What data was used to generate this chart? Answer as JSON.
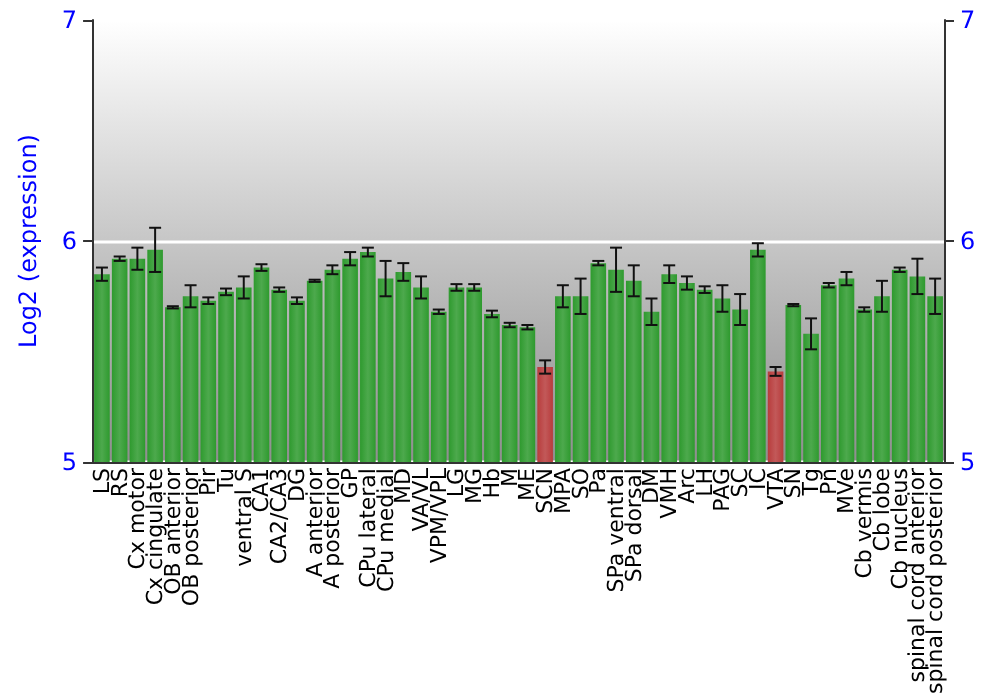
{
  "chart_data": {
    "type": "bar",
    "ylabel": "Log2 (expression)",
    "categories": [
      "LS",
      "RS",
      "Cx motor",
      "Cx cingulate",
      "OB anterior",
      "OB posterior",
      "Pir",
      "Tu",
      "ventral S",
      "CA1",
      "CA2/CA3",
      "DG",
      "A anterior",
      "A posterior",
      "GP",
      "CPu lateral",
      "CPu medial",
      "MD",
      "VA/VL",
      "VPM/VPL",
      "LG",
      "MG",
      "Hb",
      "M",
      "ME",
      "SCN",
      "MPA",
      "SO",
      "Pa",
      "SPa ventral",
      "SPa dorsal",
      "DM",
      "VMH",
      "Arc",
      "LH",
      "PAG",
      "SC",
      "IC",
      "VTA",
      "SN",
      "Tg",
      "Pn",
      "MVe",
      "Cb vermis",
      "Cb lobe",
      "Cb nucleus",
      "spinal cord anterior",
      "spinal cord posterior"
    ],
    "values": [
      5.85,
      5.92,
      5.92,
      5.96,
      5.7,
      5.75,
      5.73,
      5.77,
      5.79,
      5.88,
      5.78,
      5.73,
      5.82,
      5.87,
      5.92,
      5.95,
      5.83,
      5.86,
      5.79,
      5.68,
      5.79,
      5.79,
      5.67,
      5.62,
      5.61,
      5.43,
      5.75,
      5.75,
      5.9,
      5.87,
      5.82,
      5.68,
      5.85,
      5.81,
      5.78,
      5.74,
      5.69,
      5.96,
      5.41,
      5.71,
      5.58,
      5.8,
      5.83,
      5.69,
      5.75,
      5.87,
      5.84,
      5.75
    ],
    "errors": [
      0.03,
      0.01,
      0.05,
      0.1,
      0.005,
      0.05,
      0.015,
      0.015,
      0.05,
      0.015,
      0.01,
      0.015,
      0.005,
      0.02,
      0.03,
      0.02,
      0.08,
      0.04,
      0.05,
      0.01,
      0.015,
      0.015,
      0.015,
      0.01,
      0.01,
      0.03,
      0.05,
      0.08,
      0.01,
      0.1,
      0.07,
      0.06,
      0.04,
      0.03,
      0.015,
      0.06,
      0.07,
      0.03,
      0.02,
      0.005,
      0.07,
      0.01,
      0.03,
      0.01,
      0.07,
      0.01,
      0.08,
      0.08
    ],
    "colors": [
      "#2e9a2e",
      "#2e9a2e",
      "#2e9a2e",
      "#2e9a2e",
      "#2e9a2e",
      "#2e9a2e",
      "#2e9a2e",
      "#2e9a2e",
      "#2e9a2e",
      "#2e9a2e",
      "#2e9a2e",
      "#2e9a2e",
      "#2e9a2e",
      "#2e9a2e",
      "#2e9a2e",
      "#2e9a2e",
      "#2e9a2e",
      "#2e9a2e",
      "#2e9a2e",
      "#2e9a2e",
      "#2e9a2e",
      "#2e9a2e",
      "#2e9a2e",
      "#2e9a2e",
      "#2e9a2e",
      "#b83c3c",
      "#2e9a2e",
      "#2e9a2e",
      "#2e9a2e",
      "#2e9a2e",
      "#2e9a2e",
      "#2e9a2e",
      "#2e9a2e",
      "#2e9a2e",
      "#2e9a2e",
      "#2e9a2e",
      "#2e9a2e",
      "#2e9a2e",
      "#b83c3c",
      "#2e9a2e",
      "#2e9a2e",
      "#2e9a2e",
      "#2e9a2e",
      "#2e9a2e",
      "#2e9a2e",
      "#2e9a2e",
      "#2e9a2e",
      "#2e9a2e"
    ],
    "ylim": [
      5,
      7
    ],
    "yticks": [
      5,
      6,
      7
    ],
    "y2lim": [
      5,
      7
    ],
    "y2ticks": [
      5,
      6,
      7
    ],
    "grid": "y"
  }
}
